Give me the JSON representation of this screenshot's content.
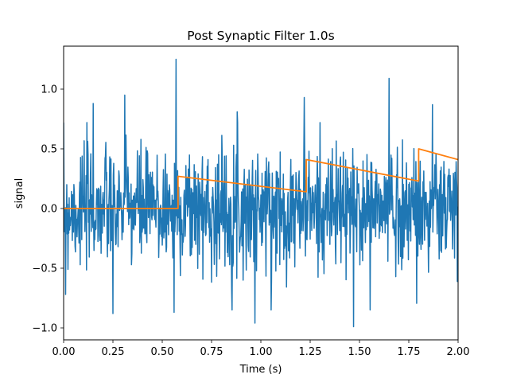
{
  "chart_data": {
    "type": "line",
    "title": "Post Synaptic Filter 1.0s",
    "xlabel": "Time (s)",
    "ylabel": "signal",
    "xlim": [
      0.0,
      2.0
    ],
    "ylim": [
      -1.1,
      1.36
    ],
    "x_ticks": [
      0.0,
      0.25,
      0.5,
      0.75,
      1.0,
      1.25,
      1.5,
      1.75,
      2.0
    ],
    "x_tick_labels": [
      "0.00",
      "0.25",
      "0.50",
      "0.75",
      "1.00",
      "1.25",
      "1.50",
      "1.75",
      "2.00"
    ],
    "y_ticks": [
      -1.0,
      -0.5,
      0.0,
      0.5,
      1.0
    ],
    "y_tick_labels": [
      "−1.0",
      "−0.5",
      "0.0",
      "0.5",
      "1.0"
    ],
    "grid": false,
    "legend": "none",
    "series": [
      {
        "color": "#1f77b4",
        "noise": {
          "x_start": 0.0,
          "x_end": 2.0,
          "sample_step": 0.002,
          "mean": 0.0,
          "std": 0.25,
          "seed": 7,
          "spikes": [
            {
              "x": 0.57,
              "y": 1.25
            },
            {
              "x": 0.31,
              "y": 0.95
            },
            {
              "x": 0.15,
              "y": 0.88
            },
            {
              "x": 0.88,
              "y": 0.81
            },
            {
              "x": 1.22,
              "y": 0.93
            },
            {
              "x": 1.65,
              "y": 1.09
            },
            {
              "x": 1.87,
              "y": 0.87
            },
            {
              "x": 0.97,
              "y": -0.96
            },
            {
              "x": 1.47,
              "y": -0.99
            },
            {
              "x": 0.25,
              "y": -0.88
            },
            {
              "x": 0.01,
              "y": -0.72
            },
            {
              "x": 0.56,
              "y": -0.87
            }
          ]
        }
      },
      {
        "color": "#ff7f0e",
        "x": [
          0.0,
          0.58,
          0.58,
          1.23,
          1.23,
          1.8,
          1.8,
          2.0
        ],
        "y": [
          0.0,
          0.0,
          0.27,
          0.14,
          0.41,
          0.23,
          0.5,
          0.41
        ]
      }
    ]
  }
}
